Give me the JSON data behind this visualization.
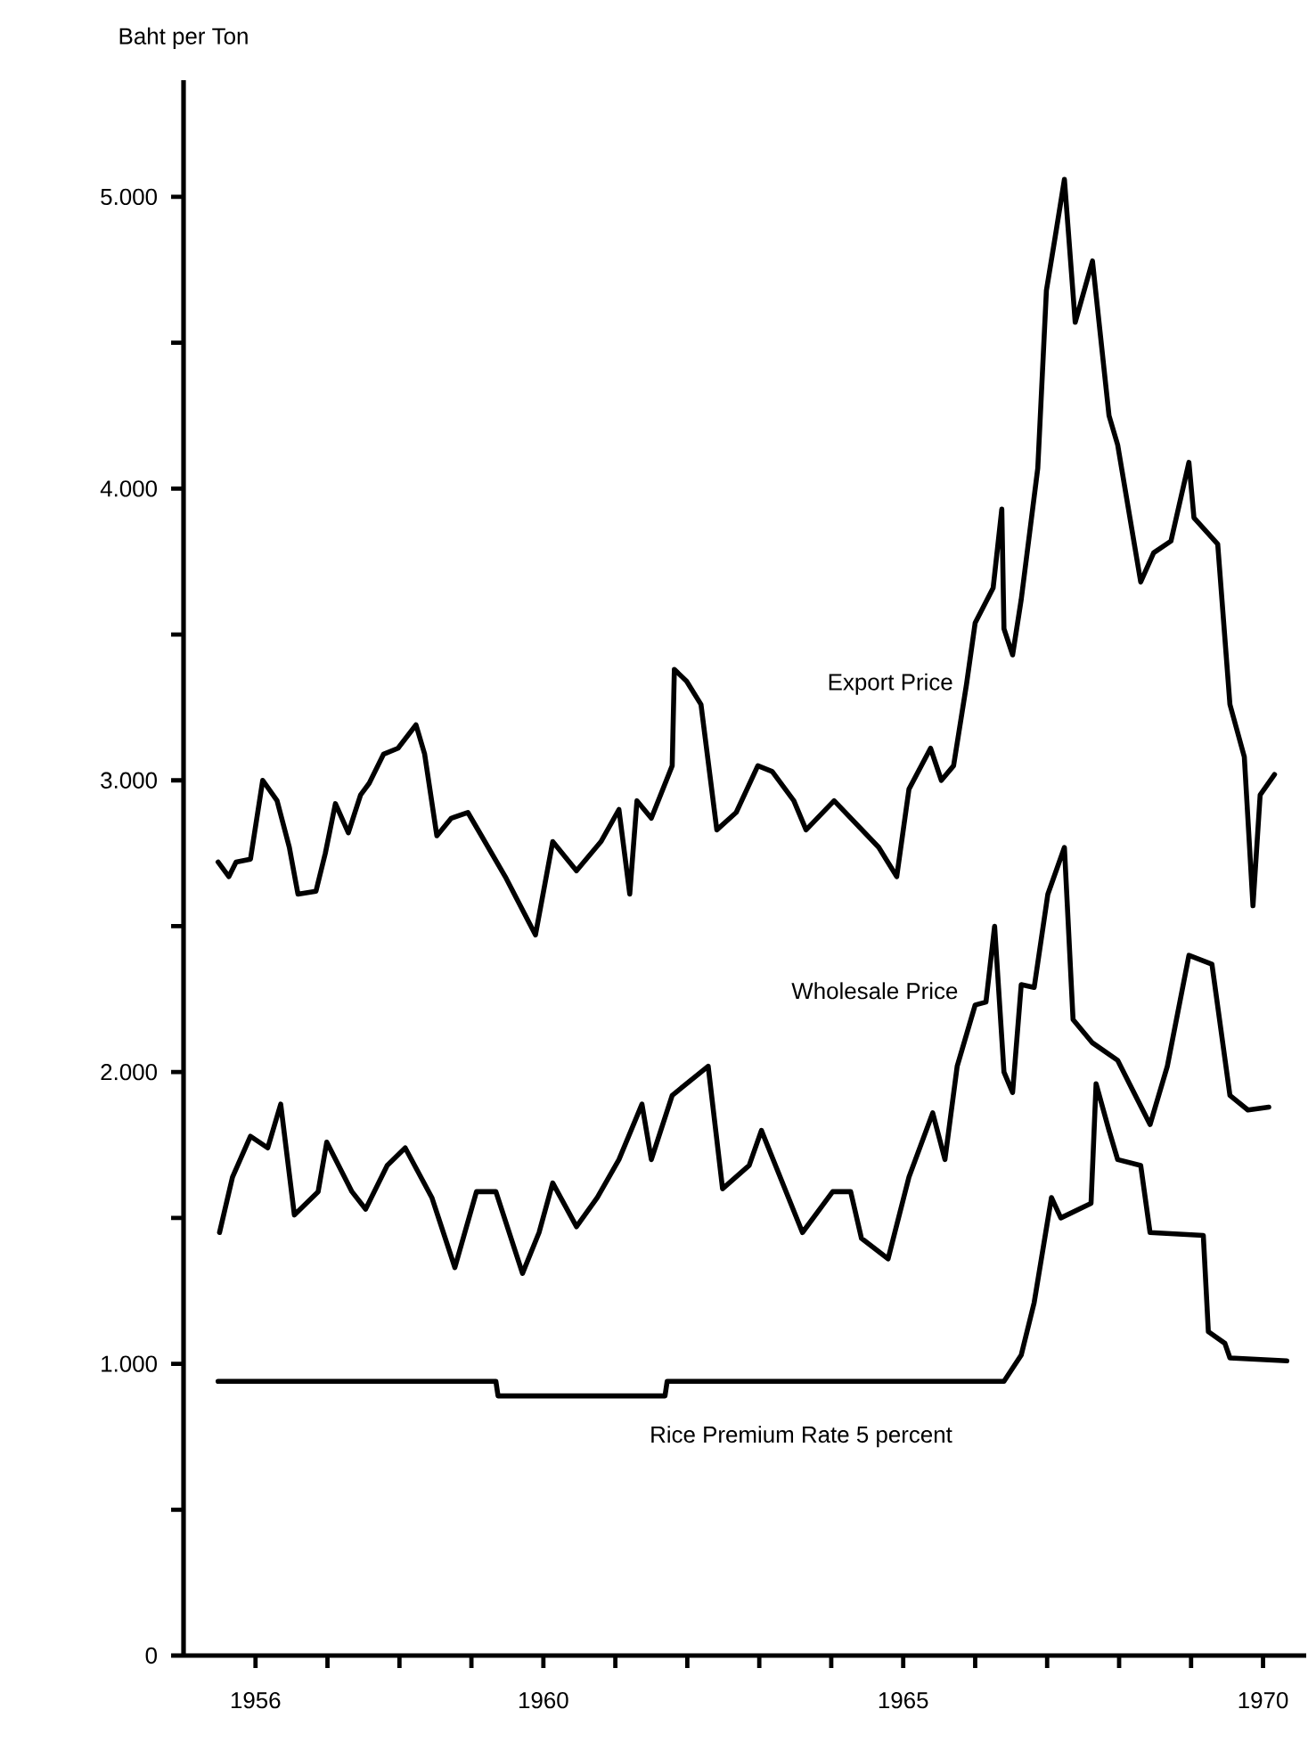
{
  "chart_data": {
    "type": "line",
    "ylabel": "Baht per Ton",
    "xlim": [
      1955,
      1970.6
    ],
    "ylim": [
      0,
      5400
    ],
    "xticks": [
      {
        "value": 1956,
        "label": "1956"
      },
      {
        "value": 1957,
        "label": null
      },
      {
        "value": 1958,
        "label": null
      },
      {
        "value": 1959,
        "label": null
      },
      {
        "value": 1960,
        "label": "1960"
      },
      {
        "value": 1961,
        "label": null
      },
      {
        "value": 1962,
        "label": null
      },
      {
        "value": 1963,
        "label": null
      },
      {
        "value": 1964,
        "label": null
      },
      {
        "value": 1965,
        "label": "1965"
      },
      {
        "value": 1966,
        "label": null
      },
      {
        "value": 1967,
        "label": null
      },
      {
        "value": 1968,
        "label": null
      },
      {
        "value": 1969,
        "label": null
      },
      {
        "value": 1970,
        "label": "1970"
      }
    ],
    "yticks": [
      0,
      {
        "value": 500,
        "label": null
      },
      {
        "value": 1000,
        "label": "1.000"
      },
      {
        "value": 1500,
        "label": null
      },
      {
        "value": 2000,
        "label": "2.000"
      },
      {
        "value": 2500,
        "label": null
      },
      {
        "value": 3000,
        "label": "3.000"
      },
      {
        "value": 3500,
        "label": null
      },
      {
        "value": 4000,
        "label": "4.000"
      },
      {
        "value": 4500,
        "label": null
      },
      {
        "value": 5000,
        "label": "5.000"
      }
    ],
    "series": [
      {
        "name": "Export Price",
        "color": "#000000",
        "x": [
          1955.48,
          1955.63,
          1955.73,
          1955.93,
          1956.1,
          1956.3,
          1956.47,
          1956.59,
          1956.84,
          1956.97,
          1957.11,
          1957.29,
          1957.46,
          1957.58,
          1957.78,
          1957.98,
          1958.23,
          1958.35,
          1958.52,
          1958.72,
          1958.95,
          1959.14,
          1959.47,
          1959.89,
          1960.13,
          1960.46,
          1960.8,
          1961.05,
          1961.2,
          1961.3,
          1961.5,
          1961.79,
          1961.82,
          1961.99,
          1962.19,
          1962.41,
          1962.68,
          1962.98,
          1963.18,
          1963.48,
          1963.65,
          1964.04,
          1964.66,
          1964.91,
          1965.08,
          1965.38,
          1965.53,
          1965.7,
          1965.88,
          1966.0,
          1966.25,
          1966.37,
          1966.4,
          1966.52,
          1966.64,
          1966.87,
          1966.99,
          1967.11,
          1967.24,
          1967.39,
          1967.63,
          1967.86,
          1967.98,
          1968.3,
          1968.48,
          1968.72,
          1968.97,
          1969.04,
          1969.37,
          1969.54,
          1969.74,
          1969.86,
          1969.96,
          1970.16
        ],
        "values": [
          2720,
          2670,
          2720,
          2730,
          3000,
          2930,
          2770,
          2610,
          2620,
          2750,
          2920,
          2820,
          2950,
          2990,
          3090,
          3110,
          3190,
          3090,
          2810,
          2870,
          2890,
          2810,
          2670,
          2470,
          2790,
          2690,
          2790,
          2900,
          2610,
          2930,
          2870,
          3050,
          3380,
          3340,
          3260,
          2830,
          2890,
          3050,
          3030,
          2930,
          2830,
          2930,
          2770,
          2670,
          2970,
          3110,
          3000,
          3050,
          3330,
          3540,
          3660,
          3930,
          3520,
          3430,
          3620,
          4070,
          4680,
          4860,
          5060,
          4570,
          4780,
          4250,
          4150,
          3680,
          3780,
          3820,
          4090,
          3900,
          3810,
          3260,
          3080,
          2570,
          2950,
          3020
        ]
      },
      {
        "name": "Wholesale Price",
        "color": "#000000",
        "x": [
          1955.5,
          1955.68,
          1955.93,
          1956.17,
          1956.35,
          1956.54,
          1956.87,
          1956.99,
          1957.34,
          1957.53,
          1957.83,
          1958.08,
          1958.45,
          1958.77,
          1959.07,
          1959.34,
          1959.71,
          1959.94,
          1960.13,
          1960.46,
          1960.75,
          1961.05,
          1961.37,
          1961.5,
          1961.79,
          1962.29,
          1962.49,
          1962.86,
          1963.03,
          1963.6,
          1964.02,
          1964.27,
          1964.42,
          1964.79,
          1965.08,
          1965.41,
          1965.58,
          1965.75,
          1966.0,
          1966.15,
          1966.27,
          1966.4,
          1966.52,
          1966.64,
          1966.82,
          1967.01,
          1967.24,
          1967.36,
          1967.63,
          1967.98,
          1968.43,
          1968.67,
          1968.97,
          1969.29,
          1969.54,
          1969.79,
          1970.08
        ],
        "values": [
          1450,
          1640,
          1780,
          1740,
          1890,
          1510,
          1590,
          1760,
          1590,
          1530,
          1680,
          1740,
          1570,
          1330,
          1590,
          1590,
          1310,
          1450,
          1620,
          1470,
          1570,
          1700,
          1890,
          1700,
          1920,
          2020,
          1600,
          1680,
          1800,
          1450,
          1590,
          1590,
          1430,
          1360,
          1640,
          1860,
          1700,
          2020,
          2230,
          2240,
          2500,
          2000,
          1930,
          2300,
          2290,
          2610,
          2770,
          2180,
          2100,
          2040,
          1820,
          2020,
          2400,
          2370,
          1920,
          1870,
          1880
        ]
      },
      {
        "name": "Rice Premium Rate 5 percent",
        "color": "#000000",
        "x": [
          1955.48,
          1959.34,
          1959.37,
          1961.69,
          1961.72,
          1966.4,
          1966.64,
          1966.82,
          1967.06,
          1967.19,
          1967.61,
          1967.68,
          1967.86,
          1967.98,
          1968.3,
          1968.43,
          1969.17,
          1969.24,
          1969.47,
          1969.54,
          1970.33
        ],
        "values": [
          940,
          940,
          890,
          890,
          940,
          940,
          1030,
          1210,
          1570,
          1500,
          1550,
          1960,
          1800,
          1700,
          1680,
          1450,
          1440,
          1110,
          1070,
          1020,
          1010
        ]
      }
    ]
  }
}
